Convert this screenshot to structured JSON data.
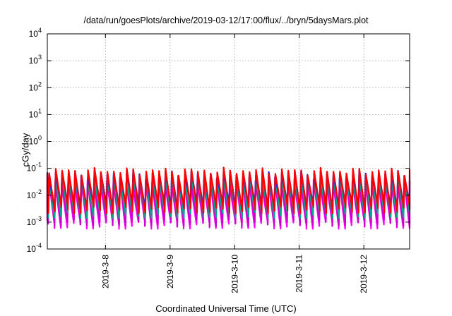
{
  "chart_data": {
    "type": "line",
    "title": "/data/run/goesPlots/archive/2019-03-12/17:00/flux/../bryn/5daysMars.plot",
    "xlabel": "Coordinated Universal Time (UTC)",
    "ylabel": "cGy/day",
    "y_scale": "log",
    "ylim": [
      0.0001,
      10000
    ],
    "y_ticks": [
      {
        "exp": "-4",
        "value": 0.0001
      },
      {
        "exp": "-3",
        "value": 0.001
      },
      {
        "exp": "-2",
        "value": 0.01
      },
      {
        "exp": "-1",
        "value": 0.1
      },
      {
        "exp": "0",
        "value": 1
      },
      {
        "exp": "1",
        "value": 10
      },
      {
        "exp": "2",
        "value": 100
      },
      {
        "exp": "3",
        "value": 1000
      },
      {
        "exp": "4",
        "value": 10000
      }
    ],
    "xlim": [
      "2019-03-07 02:24",
      "2019-03-12 17:00"
    ],
    "x_ticks": [
      "2019-3-8",
      "2019-3-9",
      "2019-3-10",
      "2019-3-11",
      "2019-3-12"
    ],
    "grid": true,
    "cycles_per_day": 10,
    "series": [
      {
        "color": "#ff00ff",
        "peak": 0.03,
        "trough": 0.0008
      },
      {
        "color": "#cc00cc",
        "peak": 0.04,
        "trough": 0.001
      },
      {
        "color": "#00aa88",
        "peak": 0.05,
        "trough": 0.002
      },
      {
        "color": "#1a1aff",
        "peak": 0.065,
        "trough": 0.004
      },
      {
        "color": "#ff0000",
        "peak": 0.08,
        "trough": 0.003
      }
    ]
  }
}
